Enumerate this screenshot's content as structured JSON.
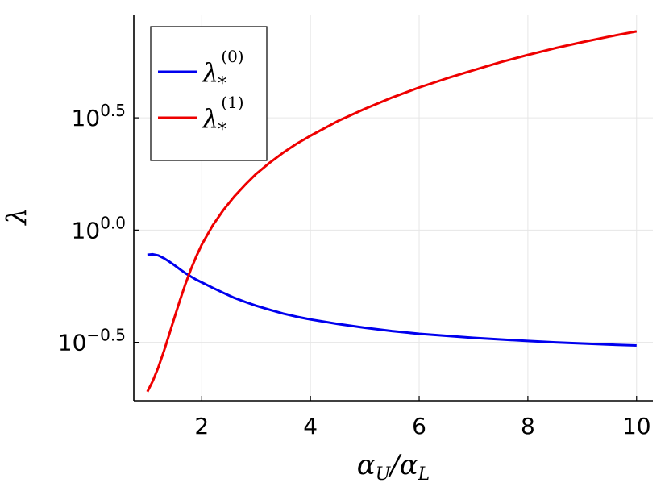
{
  "chart_data": {
    "type": "line",
    "title": "",
    "xlabel": {
      "base": "α",
      "sub1": "U",
      "slash": "/",
      "base2": "α",
      "sub2": "L"
    },
    "ylabel": "λ",
    "xlim": [
      0.75,
      10.3
    ],
    "ylim_log10": [
      -0.76,
      0.96
    ],
    "y_scale": "log10",
    "grid": true,
    "legend_position": "top-left",
    "x_ticks": [
      {
        "value": 2,
        "label": "2"
      },
      {
        "value": 4,
        "label": "4"
      },
      {
        "value": 6,
        "label": "6"
      },
      {
        "value": 8,
        "label": "8"
      },
      {
        "value": 10,
        "label": "10"
      }
    ],
    "y_ticks": [
      {
        "log10": 0.5,
        "base": "10",
        "exp": "0.5"
      },
      {
        "log10": 0.0,
        "base": "10",
        "exp": "0.0"
      },
      {
        "log10": -0.5,
        "base": "10",
        "exp": "−0.5"
      }
    ],
    "x": [
      1.0,
      1.1,
      1.2,
      1.3,
      1.4,
      1.5,
      1.6,
      1.7,
      1.8,
      1.9,
      2.0,
      2.2,
      2.4,
      2.6,
      2.8,
      3.0,
      3.25,
      3.5,
      3.75,
      4.0,
      4.5,
      5.0,
      5.5,
      6.0,
      6.5,
      7.0,
      7.5,
      8.0,
      8.5,
      9.0,
      9.5,
      10.0
    ],
    "series": [
      {
        "name": "λ*(0)",
        "legend": {
          "base": "λ",
          "sub": "*",
          "sup": "(0)"
        },
        "color": "#0000ee",
        "log10_values": [
          -0.11,
          -0.108,
          -0.113,
          -0.125,
          -0.14,
          -0.157,
          -0.175,
          -0.192,
          -0.207,
          -0.221,
          -0.233,
          -0.257,
          -0.28,
          -0.302,
          -0.32,
          -0.337,
          -0.355,
          -0.372,
          -0.386,
          -0.398,
          -0.418,
          -0.435,
          -0.45,
          -0.462,
          -0.471,
          -0.48,
          -0.487,
          -0.494,
          -0.5,
          -0.505,
          -0.51,
          -0.514
        ]
      },
      {
        "name": "λ*(1)",
        "legend": {
          "base": "λ",
          "sub": "*",
          "sup": "(1)"
        },
        "color": "#ee0000",
        "log10_values": [
          -0.72,
          -0.672,
          -0.612,
          -0.542,
          -0.466,
          -0.388,
          -0.312,
          -0.24,
          -0.175,
          -0.117,
          -0.065,
          0.02,
          0.09,
          0.15,
          0.202,
          0.25,
          0.3,
          0.345,
          0.385,
          0.42,
          0.485,
          0.54,
          0.59,
          0.635,
          0.675,
          0.712,
          0.748,
          0.78,
          0.81,
          0.837,
          0.862,
          0.885
        ]
      }
    ]
  }
}
